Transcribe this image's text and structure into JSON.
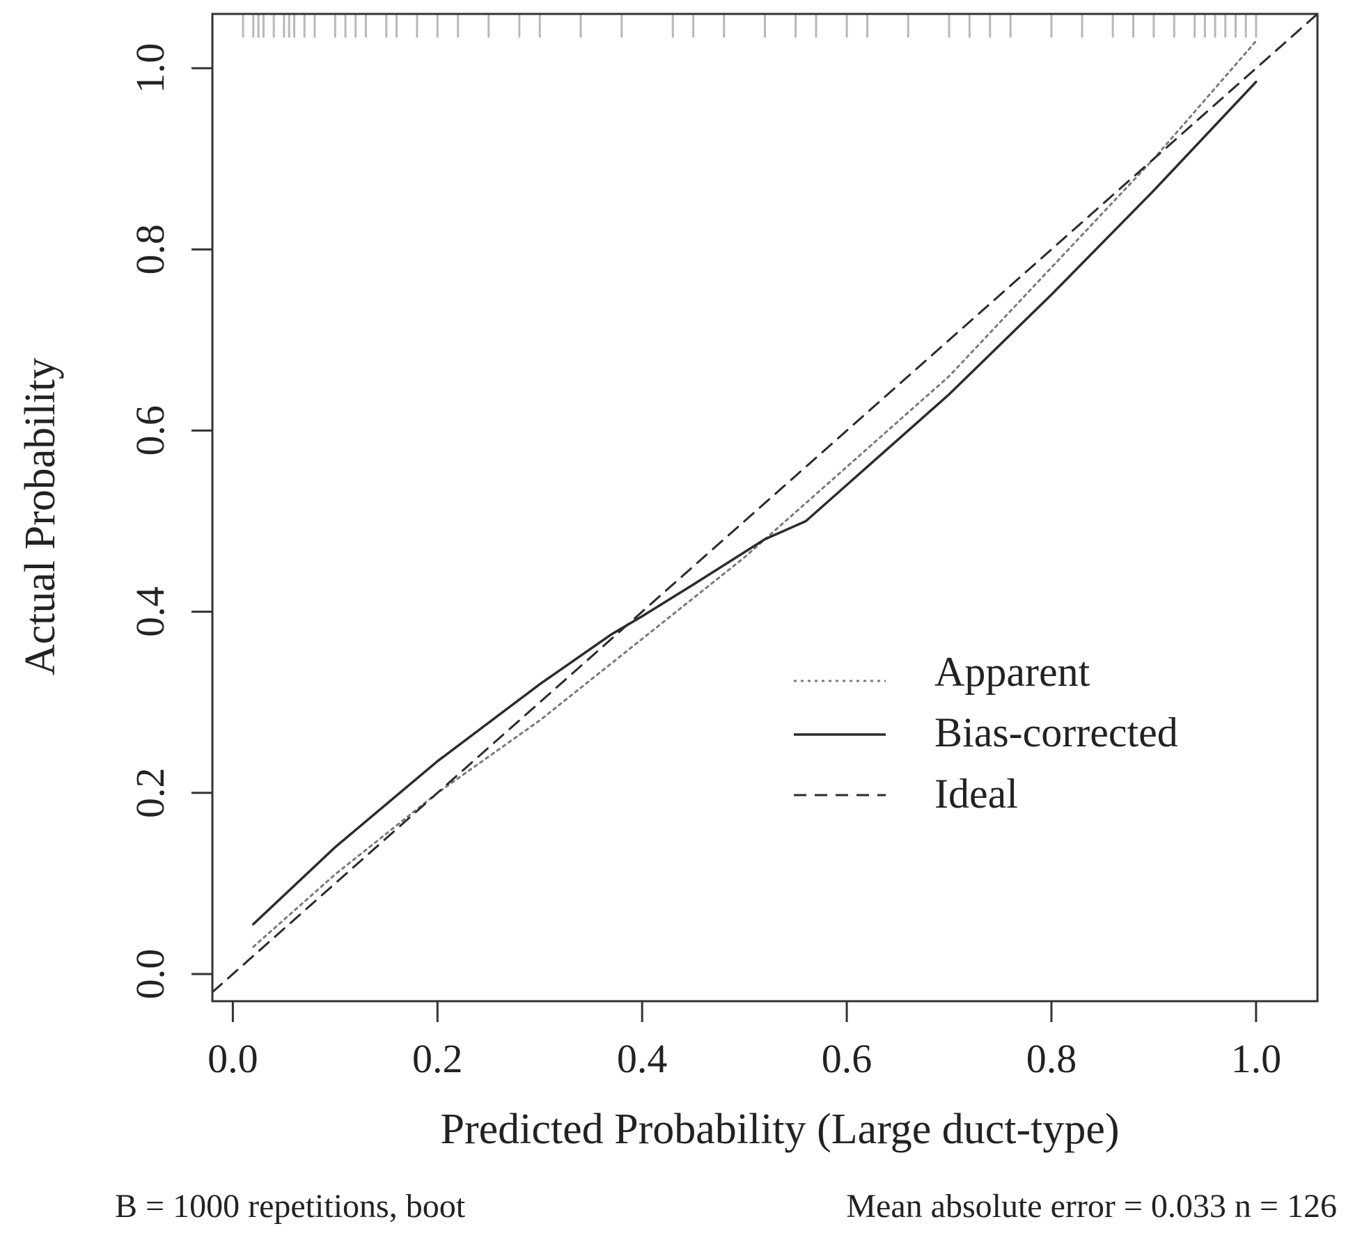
{
  "chart_data": {
    "type": "line",
    "xlabel": "Predicted Probability (Large duct-type)",
    "ylabel": "Actual Probability",
    "xlim": [
      -0.02,
      1.06
    ],
    "ylim": [
      -0.03,
      1.06
    ],
    "x_ticks": [
      0.0,
      0.2,
      0.4,
      0.6,
      0.8,
      1.0
    ],
    "x_tick_labels": [
      "0.0",
      "0.2",
      "0.4",
      "0.6",
      "0.8",
      "1.0"
    ],
    "y_ticks": [
      0.0,
      0.2,
      0.4,
      0.6,
      0.8,
      1.0
    ],
    "y_tick_labels": [
      "0.0",
      "0.2",
      "0.4",
      "0.6",
      "0.8",
      "1.0"
    ],
    "grid": false,
    "legend_position": "center-right",
    "series": [
      {
        "name": "Apparent",
        "style": "dotted",
        "x": [
          0.02,
          0.1,
          0.2,
          0.3,
          0.4,
          0.5,
          0.6,
          0.7,
          0.8,
          0.9,
          1.0
        ],
        "y": [
          0.03,
          0.11,
          0.2,
          0.28,
          0.37,
          0.46,
          0.56,
          0.66,
          0.78,
          0.9,
          1.03
        ]
      },
      {
        "name": "Bias-corrected",
        "style": "solid",
        "x": [
          0.02,
          0.1,
          0.2,
          0.3,
          0.37,
          0.4,
          0.45,
          0.52,
          0.56,
          0.6,
          0.7,
          0.8,
          0.9,
          1.0
        ],
        "y": [
          0.055,
          0.14,
          0.235,
          0.32,
          0.375,
          0.395,
          0.43,
          0.48,
          0.5,
          0.54,
          0.64,
          0.75,
          0.865,
          0.985
        ]
      },
      {
        "name": "Ideal",
        "style": "dashed",
        "x": [
          -0.02,
          1.06
        ],
        "y": [
          -0.02,
          1.06
        ]
      }
    ],
    "rug_x": [
      0.01,
      0.02,
      0.025,
      0.03,
      0.04,
      0.05,
      0.055,
      0.06,
      0.07,
      0.08,
      0.1,
      0.11,
      0.12,
      0.13,
      0.15,
      0.16,
      0.18,
      0.2,
      0.22,
      0.25,
      0.28,
      0.3,
      0.34,
      0.38,
      0.43,
      0.45,
      0.48,
      0.52,
      0.55,
      0.57,
      0.6,
      0.62,
      0.66,
      0.7,
      0.72,
      0.74,
      0.76,
      0.8,
      0.83,
      0.86,
      0.88,
      0.9,
      0.92,
      0.94,
      0.95,
      0.96,
      0.97,
      0.98,
      0.99,
      1.0
    ]
  },
  "legend": [
    {
      "label": "Apparent",
      "style": "dotted"
    },
    {
      "label": "Bias-corrected",
      "style": "solid"
    },
    {
      "label": "Ideal",
      "style": "dashed"
    }
  ],
  "footnote_left": "B = 1000 repetitions, boot",
  "footnote_right": "Mean absolute error = 0.033 n = 126",
  "colors": {
    "line": "#2b2b2b",
    "dotted": "#7a7a7a",
    "rug": "#b8b8b8",
    "frame": "#333333"
  }
}
